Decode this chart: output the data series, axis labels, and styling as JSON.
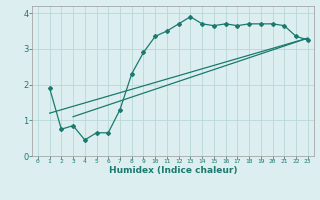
{
  "xlabel": "Humidex (Indice chaleur)",
  "ylabel": "",
  "bg_color": "#ddeef0",
  "line_color": "#1a7a6e",
  "grid_color": "#b8d8d8",
  "xlim": [
    -0.5,
    23.5
  ],
  "ylim": [
    0,
    4.2
  ],
  "xticks": [
    0,
    1,
    2,
    3,
    4,
    5,
    6,
    7,
    8,
    9,
    10,
    11,
    12,
    13,
    14,
    15,
    16,
    17,
    18,
    19,
    20,
    21,
    22,
    23
  ],
  "yticks": [
    0,
    1,
    2,
    3,
    4
  ],
  "line1_x": [
    1,
    2,
    3,
    4,
    5,
    6,
    7,
    8,
    9,
    10,
    11,
    12,
    13,
    14,
    15,
    16,
    17,
    18,
    19,
    20,
    21,
    22,
    23
  ],
  "line1_y": [
    1.9,
    0.75,
    0.85,
    0.45,
    0.65,
    0.65,
    1.3,
    2.3,
    2.9,
    3.35,
    3.5,
    3.7,
    3.9,
    3.7,
    3.65,
    3.7,
    3.65,
    3.7,
    3.7,
    3.7,
    3.65,
    3.35,
    3.25
  ],
  "line2_x": [
    1,
    23
  ],
  "line2_y": [
    1.2,
    3.3
  ],
  "line3_x": [
    3,
    23
  ],
  "line3_y": [
    1.1,
    3.3
  ]
}
